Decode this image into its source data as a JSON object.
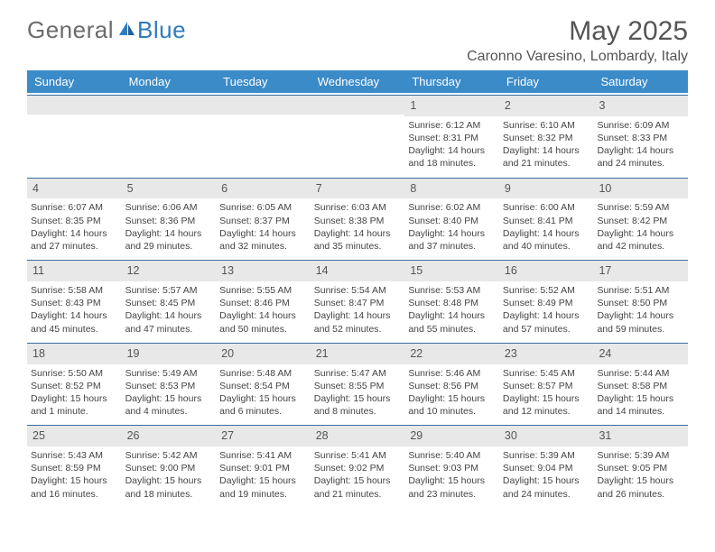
{
  "logo": {
    "text_general": "General",
    "text_blue": "Blue"
  },
  "month_title": "May 2025",
  "location": "Caronno Varesino, Lombardy, Italy",
  "colors": {
    "header_bg": "#3b8bc9",
    "header_text": "#ffffff",
    "daynum_bg": "#e8e8e8",
    "daynum_border": "#3b6ea0",
    "body_text": "#444444",
    "title_text": "#555555",
    "logo_gray": "#6b6b6b",
    "logo_blue": "#2f7bbf",
    "page_bg": "#ffffff"
  },
  "fonts": {
    "title_size_pt": 22,
    "location_size_pt": 12,
    "dayhead_size_pt": 10,
    "body_size_pt": 8
  },
  "day_headers": [
    "Sunday",
    "Monday",
    "Tuesday",
    "Wednesday",
    "Thursday",
    "Friday",
    "Saturday"
  ],
  "weeks": [
    [
      {
        "blank": true
      },
      {
        "blank": true
      },
      {
        "blank": true
      },
      {
        "blank": true
      },
      {
        "n": "1",
        "sunrise": "Sunrise: 6:12 AM",
        "sunset": "Sunset: 8:31 PM",
        "daylight": "Daylight: 14 hours and 18 minutes."
      },
      {
        "n": "2",
        "sunrise": "Sunrise: 6:10 AM",
        "sunset": "Sunset: 8:32 PM",
        "daylight": "Daylight: 14 hours and 21 minutes."
      },
      {
        "n": "3",
        "sunrise": "Sunrise: 6:09 AM",
        "sunset": "Sunset: 8:33 PM",
        "daylight": "Daylight: 14 hours and 24 minutes."
      }
    ],
    [
      {
        "n": "4",
        "sunrise": "Sunrise: 6:07 AM",
        "sunset": "Sunset: 8:35 PM",
        "daylight": "Daylight: 14 hours and 27 minutes."
      },
      {
        "n": "5",
        "sunrise": "Sunrise: 6:06 AM",
        "sunset": "Sunset: 8:36 PM",
        "daylight": "Daylight: 14 hours and 29 minutes."
      },
      {
        "n": "6",
        "sunrise": "Sunrise: 6:05 AM",
        "sunset": "Sunset: 8:37 PM",
        "daylight": "Daylight: 14 hours and 32 minutes."
      },
      {
        "n": "7",
        "sunrise": "Sunrise: 6:03 AM",
        "sunset": "Sunset: 8:38 PM",
        "daylight": "Daylight: 14 hours and 35 minutes."
      },
      {
        "n": "8",
        "sunrise": "Sunrise: 6:02 AM",
        "sunset": "Sunset: 8:40 PM",
        "daylight": "Daylight: 14 hours and 37 minutes."
      },
      {
        "n": "9",
        "sunrise": "Sunrise: 6:00 AM",
        "sunset": "Sunset: 8:41 PM",
        "daylight": "Daylight: 14 hours and 40 minutes."
      },
      {
        "n": "10",
        "sunrise": "Sunrise: 5:59 AM",
        "sunset": "Sunset: 8:42 PM",
        "daylight": "Daylight: 14 hours and 42 minutes."
      }
    ],
    [
      {
        "n": "11",
        "sunrise": "Sunrise: 5:58 AM",
        "sunset": "Sunset: 8:43 PM",
        "daylight": "Daylight: 14 hours and 45 minutes."
      },
      {
        "n": "12",
        "sunrise": "Sunrise: 5:57 AM",
        "sunset": "Sunset: 8:45 PM",
        "daylight": "Daylight: 14 hours and 47 minutes."
      },
      {
        "n": "13",
        "sunrise": "Sunrise: 5:55 AM",
        "sunset": "Sunset: 8:46 PM",
        "daylight": "Daylight: 14 hours and 50 minutes."
      },
      {
        "n": "14",
        "sunrise": "Sunrise: 5:54 AM",
        "sunset": "Sunset: 8:47 PM",
        "daylight": "Daylight: 14 hours and 52 minutes."
      },
      {
        "n": "15",
        "sunrise": "Sunrise: 5:53 AM",
        "sunset": "Sunset: 8:48 PM",
        "daylight": "Daylight: 14 hours and 55 minutes."
      },
      {
        "n": "16",
        "sunrise": "Sunrise: 5:52 AM",
        "sunset": "Sunset: 8:49 PM",
        "daylight": "Daylight: 14 hours and 57 minutes."
      },
      {
        "n": "17",
        "sunrise": "Sunrise: 5:51 AM",
        "sunset": "Sunset: 8:50 PM",
        "daylight": "Daylight: 14 hours and 59 minutes."
      }
    ],
    [
      {
        "n": "18",
        "sunrise": "Sunrise: 5:50 AM",
        "sunset": "Sunset: 8:52 PM",
        "daylight": "Daylight: 15 hours and 1 minute."
      },
      {
        "n": "19",
        "sunrise": "Sunrise: 5:49 AM",
        "sunset": "Sunset: 8:53 PM",
        "daylight": "Daylight: 15 hours and 4 minutes."
      },
      {
        "n": "20",
        "sunrise": "Sunrise: 5:48 AM",
        "sunset": "Sunset: 8:54 PM",
        "daylight": "Daylight: 15 hours and 6 minutes."
      },
      {
        "n": "21",
        "sunrise": "Sunrise: 5:47 AM",
        "sunset": "Sunset: 8:55 PM",
        "daylight": "Daylight: 15 hours and 8 minutes."
      },
      {
        "n": "22",
        "sunrise": "Sunrise: 5:46 AM",
        "sunset": "Sunset: 8:56 PM",
        "daylight": "Daylight: 15 hours and 10 minutes."
      },
      {
        "n": "23",
        "sunrise": "Sunrise: 5:45 AM",
        "sunset": "Sunset: 8:57 PM",
        "daylight": "Daylight: 15 hours and 12 minutes."
      },
      {
        "n": "24",
        "sunrise": "Sunrise: 5:44 AM",
        "sunset": "Sunset: 8:58 PM",
        "daylight": "Daylight: 15 hours and 14 minutes."
      }
    ],
    [
      {
        "n": "25",
        "sunrise": "Sunrise: 5:43 AM",
        "sunset": "Sunset: 8:59 PM",
        "daylight": "Daylight: 15 hours and 16 minutes."
      },
      {
        "n": "26",
        "sunrise": "Sunrise: 5:42 AM",
        "sunset": "Sunset: 9:00 PM",
        "daylight": "Daylight: 15 hours and 18 minutes."
      },
      {
        "n": "27",
        "sunrise": "Sunrise: 5:41 AM",
        "sunset": "Sunset: 9:01 PM",
        "daylight": "Daylight: 15 hours and 19 minutes."
      },
      {
        "n": "28",
        "sunrise": "Sunrise: 5:41 AM",
        "sunset": "Sunset: 9:02 PM",
        "daylight": "Daylight: 15 hours and 21 minutes."
      },
      {
        "n": "29",
        "sunrise": "Sunrise: 5:40 AM",
        "sunset": "Sunset: 9:03 PM",
        "daylight": "Daylight: 15 hours and 23 minutes."
      },
      {
        "n": "30",
        "sunrise": "Sunrise: 5:39 AM",
        "sunset": "Sunset: 9:04 PM",
        "daylight": "Daylight: 15 hours and 24 minutes."
      },
      {
        "n": "31",
        "sunrise": "Sunrise: 5:39 AM",
        "sunset": "Sunset: 9:05 PM",
        "daylight": "Daylight: 15 hours and 26 minutes."
      }
    ]
  ]
}
